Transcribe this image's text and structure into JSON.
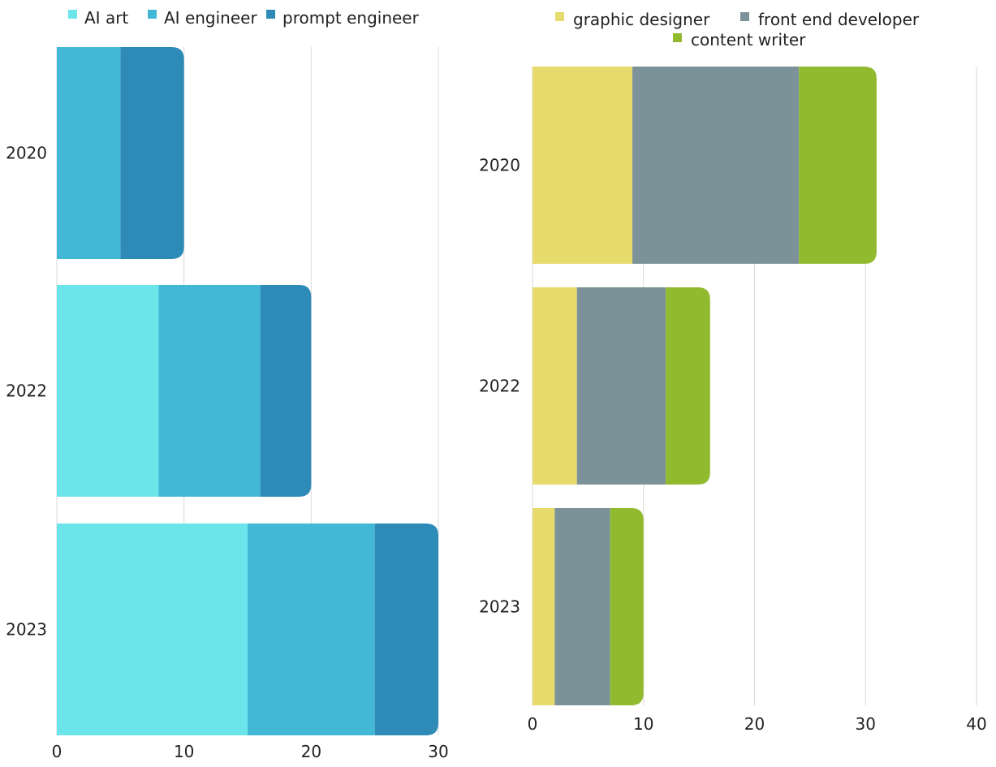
{
  "chart_data": [
    {
      "type": "bar",
      "orientation": "horizontal",
      "stacked": true,
      "categories": [
        "2020",
        "2022",
        "2023"
      ],
      "series": [
        {
          "name": "AI art",
          "color": "#6ce5ea",
          "values": [
            0,
            8,
            15
          ]
        },
        {
          "name": "AI engineer",
          "color": "#43b7d6",
          "values": [
            5,
            8,
            10
          ]
        },
        {
          "name": "prompt engineer",
          "color": "#2e8bb8",
          "values": [
            5,
            4,
            5
          ]
        }
      ],
      "x_ticks": [
        "0",
        "10",
        "20",
        "30"
      ],
      "xlim": [
        0,
        30
      ],
      "legend_position": "top-left",
      "grid": true
    },
    {
      "type": "bar",
      "orientation": "horizontal",
      "stacked": true,
      "categories": [
        "2020",
        "2022",
        "2023"
      ],
      "series": [
        {
          "name": "graphic designer",
          "color": "#e6db6c",
          "values": [
            9,
            4,
            2
          ]
        },
        {
          "name": "front end developer",
          "color": "#7b9398",
          "values": [
            15,
            8,
            5
          ]
        },
        {
          "name": "content writer",
          "color": "#92ba2f",
          "values": [
            7,
            4,
            3
          ]
        }
      ],
      "x_ticks": [
        "0",
        "10",
        "20",
        "30",
        "40"
      ],
      "xlim": [
        0,
        40
      ],
      "legend_position": "top",
      "grid": true
    }
  ]
}
